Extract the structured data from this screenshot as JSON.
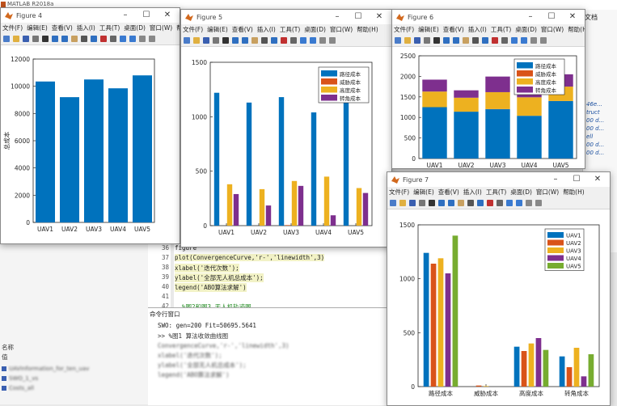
{
  "matlab": {
    "title": "MATLAB R2018a",
    "right_panel_text": "文档",
    "right_code_lines": [
      "46e...",
      "truct",
      "00 d...",
      "00 d...",
      "ell",
      "00 d...",
      "00 d..."
    ],
    "editor": {
      "lines": [
        {
          "num": "36",
          "text": "figure"
        },
        {
          "num": "37",
          "text": "plot(ConvergenceCurve,'r-','linewidth',3)"
        },
        {
          "num": "38",
          "text": "xlabel('迭代次数');"
        },
        {
          "num": "39",
          "text": "ylabel('全部无人机总成本');"
        },
        {
          "num": "40",
          "text": "legend('ABO算法求解')"
        },
        {
          "num": "41",
          "text": ""
        },
        {
          "num": "42",
          "text": "  %图2和图3 无人机轨迹图"
        }
      ]
    },
    "command_window": {
      "title": "命令行窗口",
      "lines": [
        "SWO: gen=200 Fit=50695.5641",
        ">> %图1 算法收敛曲线图"
      ],
      "blurred": [
        "ConvergenceCurve,'r-','linewidth',3)",
        "xlabel('迭代次数');",
        "ylabel('全部无人机总成本');",
        "legend('ABO算法求解')"
      ]
    },
    "left_panel": {
      "label1": "名称",
      "label2": "值",
      "items": [
        "UAVInformation_for_ten_uav",
        "SWO_1_vs",
        "Costs_all"
      ]
    }
  },
  "menu_labels": [
    "文件(F)",
    "编辑(E)",
    "查看(V)",
    "插入(I)",
    "工具(T)",
    "桌面(D)",
    "窗口(W)",
    "帮助(H)"
  ],
  "figure4": {
    "title": "Figure 4",
    "chart_data": {
      "type": "bar",
      "categories": [
        "UAV1",
        "UAV2",
        "UAV3",
        "UAV4",
        "UAV5"
      ],
      "values": [
        10350,
        9200,
        10500,
        9850,
        10800
      ],
      "ylabel": "总成本",
      "ylim": [
        0,
        12000
      ],
      "yticks": [
        "0",
        "2000",
        "4000",
        "6000",
        "8000",
        "10000",
        "12000"
      ],
      "color": "#0072BD"
    }
  },
  "figure5": {
    "title": "Figure 5",
    "chart_data": {
      "type": "bar",
      "categories": [
        "UAV1",
        "UAV2",
        "UAV3",
        "UAV4",
        "UAV5"
      ],
      "series": [
        {
          "name": "路径成本",
          "color": "#0072BD",
          "values": [
            1220,
            1130,
            1180,
            1040,
            1170
          ]
        },
        {
          "name": "威胁成本",
          "color": "#D95319",
          "values": [
            0,
            0,
            5,
            0,
            0
          ]
        },
        {
          "name": "高度成本",
          "color": "#EDB120",
          "values": [
            380,
            335,
            410,
            450,
            345
          ]
        },
        {
          "name": "转角成本",
          "color": "#7E2F8E",
          "values": [
            290,
            185,
            365,
            95,
            300
          ]
        }
      ],
      "ylim": [
        0,
        1500
      ],
      "yticks": [
        "0",
        "500",
        "1000",
        "1500"
      ],
      "legend": "top-right"
    }
  },
  "figure6": {
    "title": "Figure 6",
    "chart_data": {
      "type": "bar",
      "stacked": true,
      "categories": [
        "UAV1",
        "UAV2",
        "UAV3",
        "UAV4",
        "UAV5"
      ],
      "series": [
        {
          "name": "路径成本",
          "color": "#0072BD",
          "values": [
            1250,
            1140,
            1200,
            1040,
            1400
          ]
        },
        {
          "name": "威胁成本",
          "color": "#D95319",
          "values": [
            0,
            0,
            5,
            0,
            0
          ]
        },
        {
          "name": "高度成本",
          "color": "#EDB120",
          "values": [
            380,
            340,
            410,
            450,
            350
          ]
        },
        {
          "name": "转角成本",
          "color": "#7E2F8E",
          "values": [
            290,
            180,
            380,
            100,
            300
          ]
        }
      ],
      "ylim": [
        0,
        2500
      ],
      "yticks": [
        "0",
        "500",
        "1000",
        "1500",
        "2000",
        "2500"
      ],
      "legend": "top-right"
    }
  },
  "figure7": {
    "title": "Figure 7",
    "chart_data": {
      "type": "bar",
      "categories": [
        "路径成本",
        "威胁成本",
        "高度成本",
        "转角成本"
      ],
      "series": [
        {
          "name": "UAV1",
          "color": "#0072BD",
          "values": [
            1240,
            0,
            370,
            280
          ]
        },
        {
          "name": "UAV2",
          "color": "#D95319",
          "values": [
            1140,
            10,
            330,
            180
          ]
        },
        {
          "name": "UAV3",
          "color": "#EDB120",
          "values": [
            1190,
            5,
            400,
            360
          ]
        },
        {
          "name": "UAV4",
          "color": "#7E2F8E",
          "values": [
            1050,
            0,
            450,
            95
          ]
        },
        {
          "name": "UAV5",
          "color": "#77AC30",
          "values": [
            1400,
            0,
            340,
            300
          ]
        }
      ],
      "ylim": [
        0,
        1500
      ],
      "yticks": [
        "0",
        "500",
        "1000",
        "1500"
      ],
      "legend": "top-right"
    }
  }
}
